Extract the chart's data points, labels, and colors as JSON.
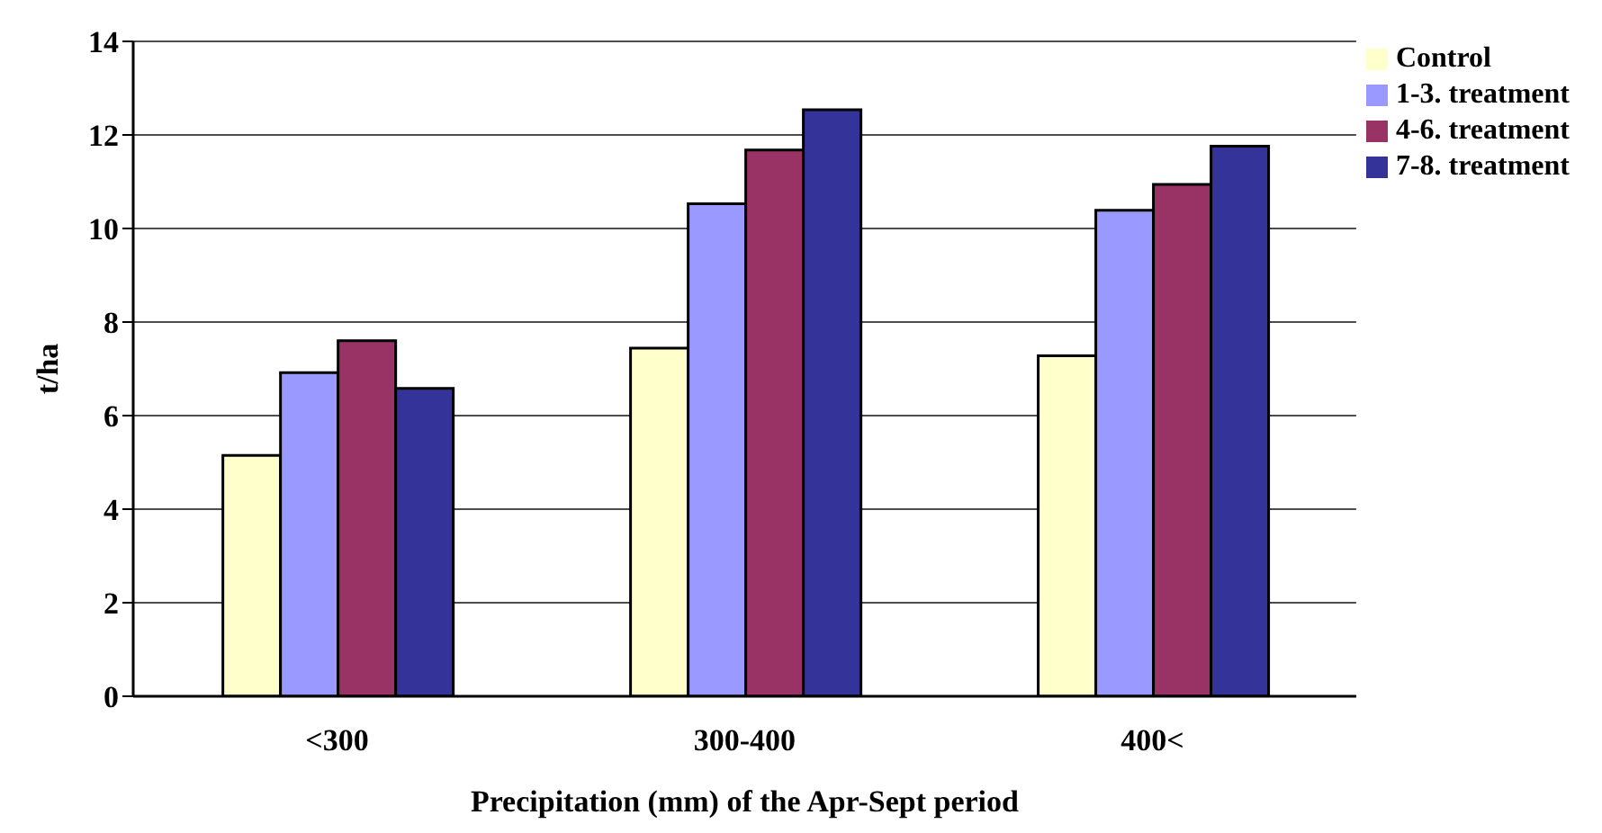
{
  "chart_data": {
    "type": "bar",
    "xlabel": "Precipitation (mm) of the Apr-Sept period",
    "ylabel": "t/ha",
    "categories": [
      "<300",
      "300-400",
      "400<"
    ],
    "series": [
      {
        "name": "Control",
        "color": "#ffffcc",
        "values": [
          5.15,
          7.44,
          7.28
        ]
      },
      {
        "name": "1-3. treatment",
        "color": "#9999ff",
        "values": [
          6.92,
          10.53,
          10.39
        ]
      },
      {
        "name": "4-6. treatment",
        "color": "#993366",
        "values": [
          7.6,
          11.68,
          10.94
        ]
      },
      {
        "name": "7-8. treatment",
        "color": "#333399",
        "values": [
          6.58,
          12.54,
          11.76
        ]
      }
    ],
    "ylim": [
      0,
      14
    ],
    "yticks": [
      0,
      2,
      4,
      6,
      8,
      10,
      12,
      14
    ],
    "grid": "y",
    "legend": "top right"
  }
}
